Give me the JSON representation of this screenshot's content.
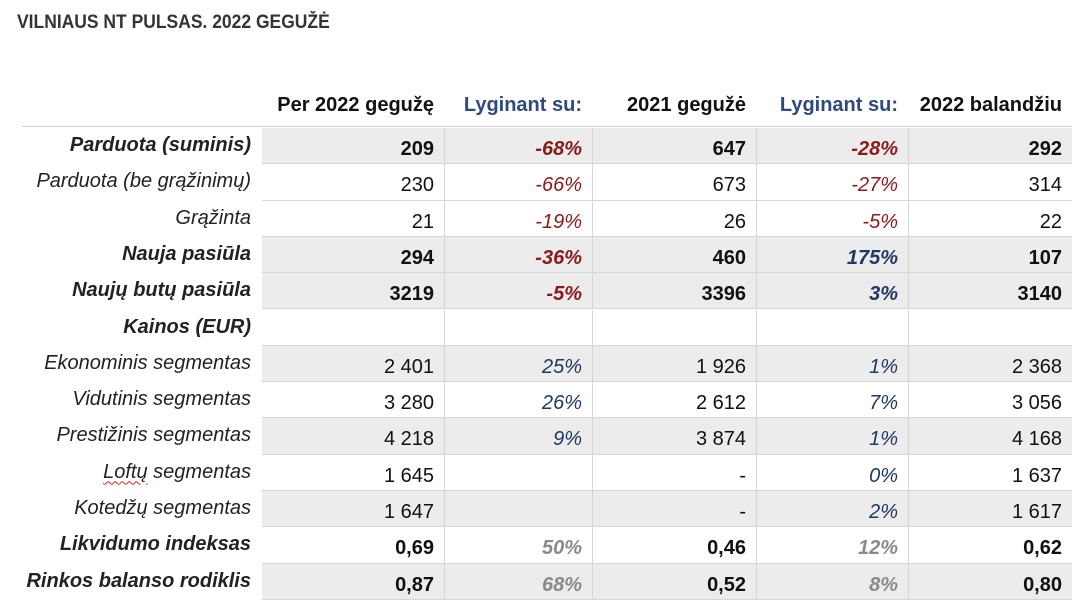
{
  "title": "VILNIAUS NT PULSAS. 2022 GEGUŽĖ",
  "headers": [
    "Per 2022 gegužę",
    "Lyginant su:",
    "2021 gegužė",
    "Lyginant su:",
    "2022 balandžiu"
  ],
  "rows": [
    {
      "label": "Parduota (suminis)",
      "c1": "209",
      "c2": "-68%",
      "c3": "647",
      "c4": "-28%",
      "c5": "292"
    },
    {
      "label": "Parduota (be grąžinimų)",
      "c1": "230",
      "c2": "-66%",
      "c3": "673",
      "c4": "-27%",
      "c5": "314"
    },
    {
      "label": "Grąžinta",
      "c1": "21",
      "c2": "-19%",
      "c3": "26",
      "c4": "-5%",
      "c5": "22"
    },
    {
      "label": "Nauja pasiūla",
      "c1": "294",
      "c2": "-36%",
      "c3": "460",
      "c4": "175%",
      "c5": "107"
    },
    {
      "label": "Naujų butų pasiūla",
      "c1": "3219",
      "c2": "-5%",
      "c3": "3396",
      "c4": "3%",
      "c5": "3140"
    },
    {
      "label": "Kainos (EUR)",
      "c1": "",
      "c2": "",
      "c3": "",
      "c4": "",
      "c5": ""
    },
    {
      "label": "Ekonominis segmentas",
      "c1": "2 401",
      "c2": "25%",
      "c3": "1 926",
      "c4": "1%",
      "c5": "2 368"
    },
    {
      "label": "Vidutinis segmentas",
      "c1": "3 280",
      "c2": "26%",
      "c3": "2 612",
      "c4": "7%",
      "c5": "3 056"
    },
    {
      "label": "Prestižinis segmentas",
      "c1": "4 218",
      "c2": "9%",
      "c3": "3 874",
      "c4": "1%",
      "c5": "4 168"
    },
    {
      "label_a": "Loftų",
      "label_b": " segmentas",
      "c1": "1 645",
      "c2": "",
      "c3": "-",
      "c4": "0%",
      "c5": "1 637"
    },
    {
      "label": "Kotedžų segmentas",
      "c1": "1 647",
      "c2": "",
      "c3": "-",
      "c4": "2%",
      "c5": "1 617"
    },
    {
      "label": "Likvidumo indeksas",
      "c1": "0,69",
      "c2": "50%",
      "c3": "0,46",
      "c4": "12%",
      "c5": "0,62"
    },
    {
      "label": "Rinkos balanso rodiklis",
      "c1": "0,87",
      "c2": "68%",
      "c3": "0,52",
      "c4": "8%",
      "c5": "0,80"
    }
  ]
}
